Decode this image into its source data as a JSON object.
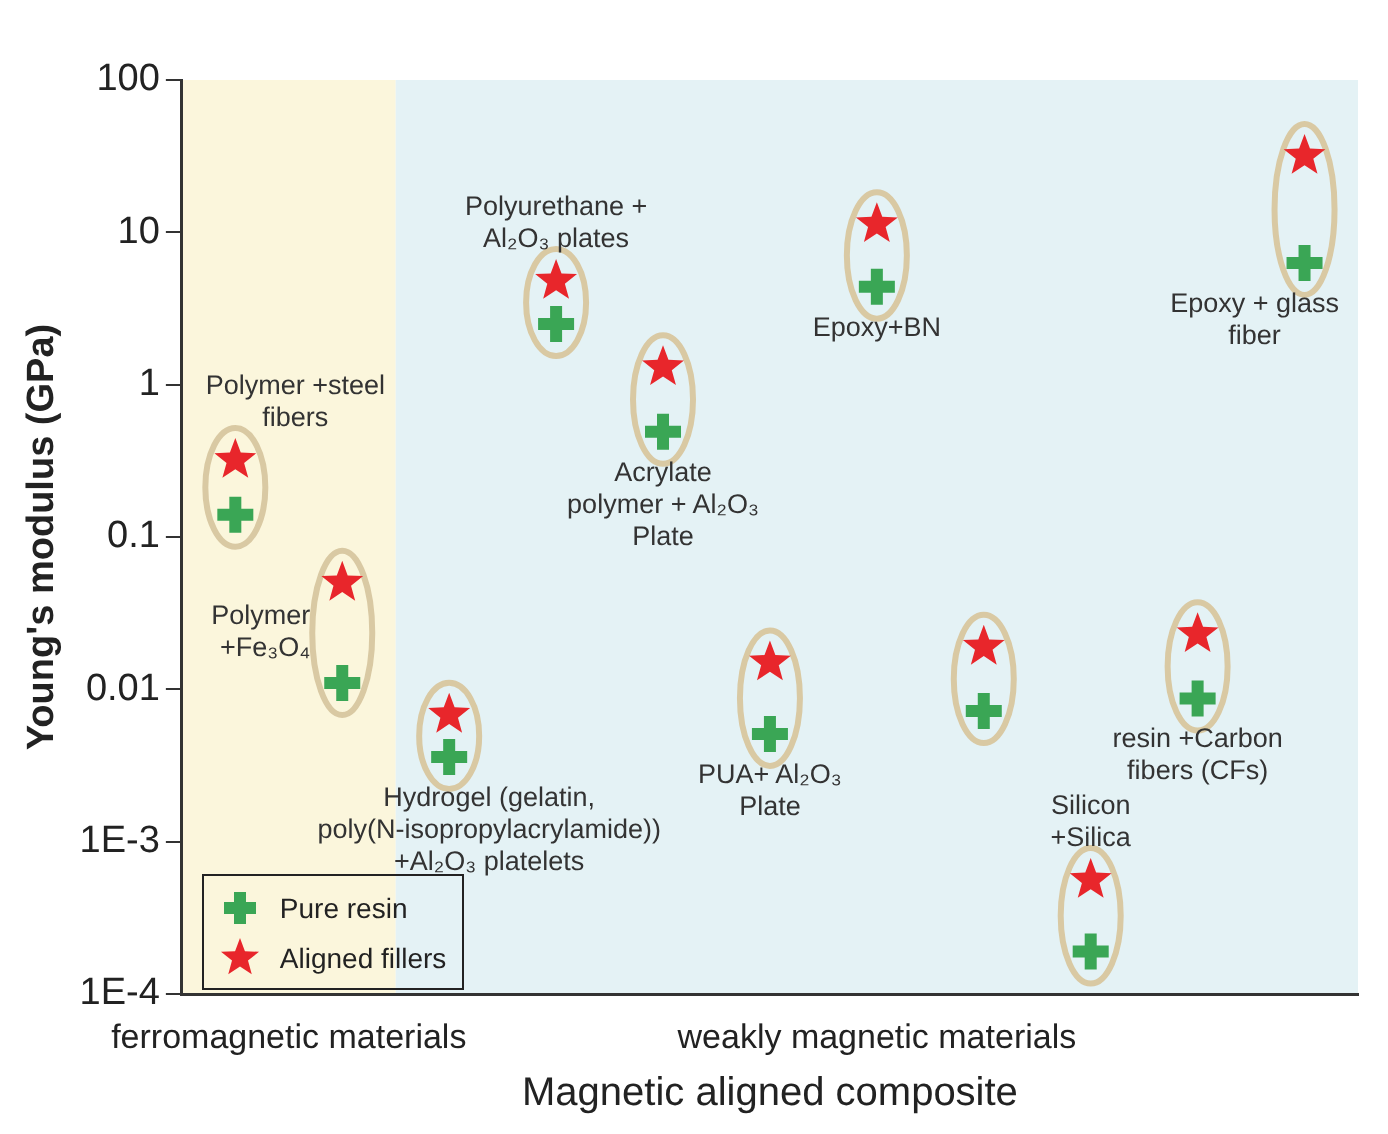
{
  "chart_data": {
    "type": "scatter",
    "xlabel": "Magnetic aligned composite",
    "ylabel": "Young's modulus (GPa)",
    "categories": [
      null,
      null,
      null,
      null,
      null,
      null,
      null,
      null,
      null,
      null,
      null
    ],
    "series": [
      {
        "name": "Pure resin",
        "color": "#3aa655",
        "marker": "cross",
        "values": [
          0.14,
          0.011,
          0.0036,
          2.5,
          0.49,
          0.0051,
          4.4,
          0.0072,
          0.00019,
          0.0087,
          6.3
        ]
      },
      {
        "name": "Aligned fillers",
        "color": "#e8262b",
        "marker": "star",
        "values": [
          0.32,
          0.05,
          0.0068,
          4.8,
          1.3,
          0.015,
          11.3,
          0.019,
          0.00056,
          0.023,
          31.7
        ]
      }
    ],
    "log": "y",
    "ylim": [
      0.0001,
      100
    ],
    "yticks": [
      {
        "value": 0.0001,
        "label": "1E-4"
      },
      {
        "value": 0.001,
        "label": "1E-3"
      },
      0.01,
      0.1,
      1,
      10,
      100
    ],
    "annotations": [
      "ferromagnetic materials",
      "weakly magnetic materials",
      "Polymer +steel fibers",
      "Polymer +Fe₃O₄",
      "Hydrogel (gelatin, poly(N-isopropylacrylamide)) +Al₂O₃ platelets",
      "Polyurethane + Al₂O₃ plates",
      "Acrylate polymer + Al₂O₃ Plate",
      "PUA+ Al₂O₃ Plate",
      "Epoxy+BN",
      "Silicon +Silica",
      "resin +Carbon fibers (CFs)",
      "Epoxy + glass fiber"
    ],
    "grid": false,
    "legend": "bottom left",
    "tick_labels": "y"
  }
}
